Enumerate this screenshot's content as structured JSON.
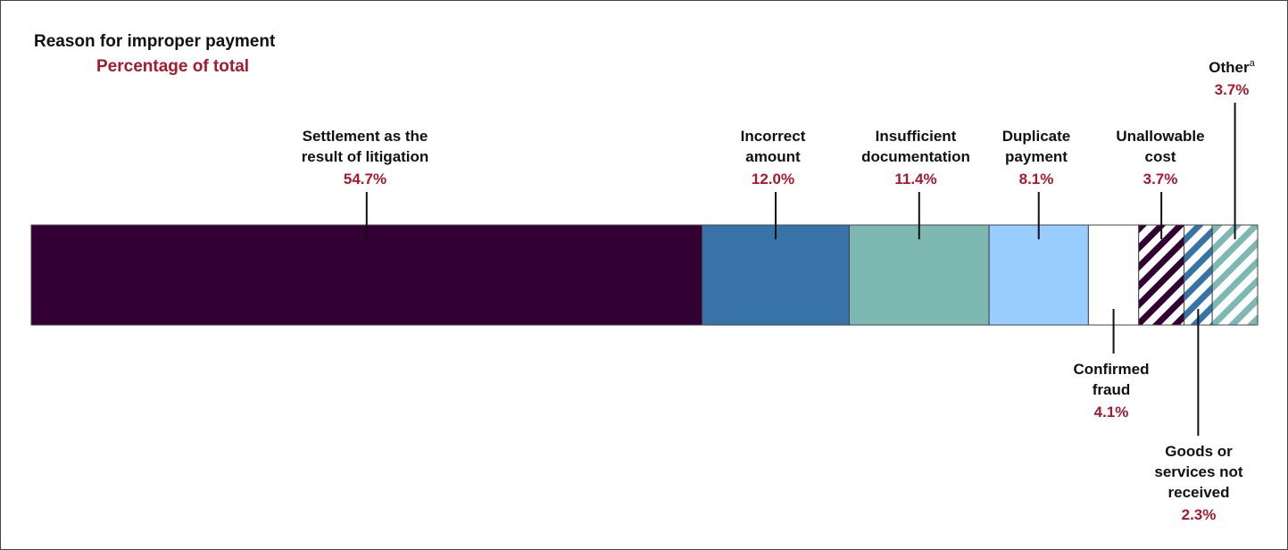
{
  "chart_data": {
    "type": "bar",
    "orientation": "horizontal-stacked",
    "title": "Reason for improper payment",
    "subtitle": "Percentage of total",
    "categories": [
      "Settlement as the result of litigation",
      "Incorrect amount",
      "Insufficient documentation",
      "Duplicate payment",
      "Confirmed fraud",
      "Unallowable cost",
      "Goods or services not received",
      "Other"
    ],
    "values": [
      54.7,
      12.0,
      11.4,
      8.1,
      4.1,
      3.7,
      2.3,
      3.7
    ],
    "value_labels": [
      "54.7%",
      "12.0%",
      "11.4%",
      "8.1%",
      "4.1%",
      "3.7%",
      "2.3%",
      "3.7%"
    ],
    "label_lines": [
      [
        "Settlement as the",
        "result of litigation"
      ],
      [
        "Incorrect",
        "amount"
      ],
      [
        "Insufficient",
        "documentation"
      ],
      [
        "Duplicate",
        "payment"
      ],
      [
        "Confirmed",
        "fraud"
      ],
      [
        "Unallowable",
        "cost"
      ],
      [
        "Goods or",
        "services not",
        "received"
      ],
      [
        "Other"
      ]
    ],
    "footnote_marks": [
      "",
      "",
      "",
      "",
      "",
      "",
      "",
      "a"
    ],
    "label_position": [
      "above",
      "above",
      "above",
      "above",
      "below",
      "above",
      "below",
      "above"
    ],
    "colors": [
      "#330033",
      "#3873a8",
      "#7db8b3",
      "#99ccff",
      "#ffffff",
      "#330033",
      "#3873a8",
      "#7db8b3"
    ],
    "hatched": [
      false,
      false,
      false,
      false,
      false,
      true,
      true,
      true
    ]
  }
}
